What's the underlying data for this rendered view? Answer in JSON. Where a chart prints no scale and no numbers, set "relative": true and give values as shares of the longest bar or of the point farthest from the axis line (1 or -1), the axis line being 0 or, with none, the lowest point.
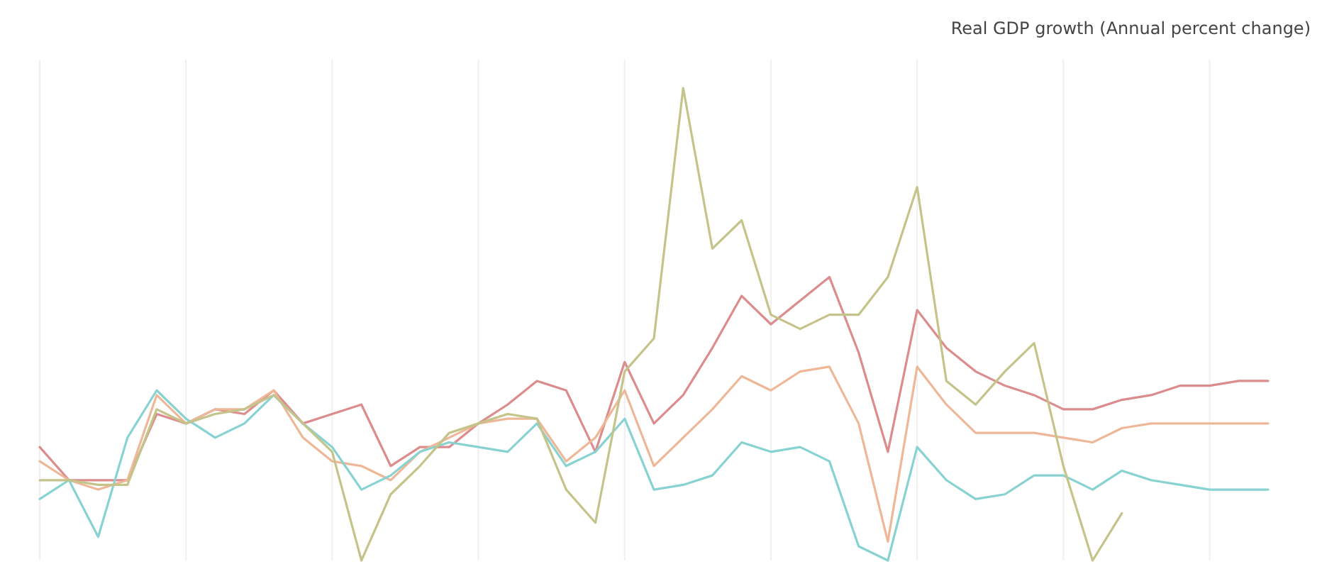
{
  "chart_data": {
    "type": "line",
    "title": "Real GDP growth (Annual percent change)",
    "relative": true,
    "grid": "x",
    "line_style": "solid",
    "categories": [
      null,
      null,
      null,
      null,
      null,
      null,
      null,
      null,
      null,
      null,
      null,
      null,
      null,
      null,
      null,
      null,
      null,
      null,
      null,
      null,
      null,
      null,
      null,
      null,
      null,
      null,
      null,
      null,
      null,
      null,
      null,
      null,
      null,
      null,
      null,
      null,
      null,
      null,
      null,
      null,
      null,
      null,
      null
    ],
    "series": [
      {
        "color": "#dc8c8c",
        "values": [
          0.24,
          0.17,
          0.17,
          0.17,
          0.31,
          0.29,
          0.32,
          0.31,
          0.36,
          0.29,
          0.31,
          0.33,
          0.2,
          0.24,
          0.24,
          0.29,
          0.33,
          0.38,
          0.36,
          0.23,
          0.42,
          0.29,
          0.35,
          0.45,
          0.56,
          0.5,
          0.55,
          0.6,
          0.44,
          0.23,
          0.53,
          0.45,
          0.4,
          0.37,
          0.35,
          0.32,
          0.32,
          0.34,
          0.35,
          0.37,
          0.37,
          0.38,
          0.38
        ]
      },
      {
        "color": "#eeb898",
        "values": [
          0.21,
          0.17,
          0.15,
          0.17,
          0.35,
          0.29,
          0.32,
          0.32,
          0.36,
          0.26,
          0.21,
          0.2,
          0.17,
          0.23,
          0.26,
          0.29,
          0.3,
          0.3,
          0.21,
          0.26,
          0.36,
          0.2,
          0.26,
          0.32,
          0.39,
          0.36,
          0.4,
          0.41,
          0.29,
          0.04,
          0.41,
          0.33,
          0.27,
          0.27,
          0.27,
          0.26,
          0.25,
          0.28,
          0.29,
          0.29,
          0.29,
          0.29,
          0.29
        ]
      },
      {
        "color": "#88d2d2",
        "values": [
          0.13,
          0.17,
          0.05,
          0.26,
          0.36,
          0.3,
          0.26,
          0.29,
          0.35,
          0.29,
          0.24,
          0.15,
          0.18,
          0.23,
          0.25,
          0.24,
          0.23,
          0.29,
          0.2,
          0.23,
          0.3,
          0.15,
          0.16,
          0.18,
          0.25,
          0.23,
          0.24,
          0.21,
          0.03,
          0,
          0.24,
          0.17,
          0.13,
          0.14,
          0.18,
          0.18,
          0.15,
          0.19,
          0.17,
          0.16,
          0.15,
          0.15,
          0.15
        ]
      },
      {
        "color": "#c4c48a",
        "values": [
          0.17,
          0.17,
          0.16,
          0.16,
          0.32,
          0.29,
          0.31,
          0.32,
          0.35,
          0.29,
          0.23,
          0,
          0.14,
          0.2,
          0.27,
          0.29,
          0.31,
          0.3,
          0.15,
          0.08,
          0.4,
          0.47,
          1,
          0.66,
          0.72,
          0.52,
          0.49,
          0.52,
          0.52,
          0.6,
          0.79,
          0.38,
          0.33,
          0.4,
          0.46,
          0.2,
          0,
          0.1,
          null,
          null,
          null,
          null,
          null
        ]
      }
    ]
  }
}
